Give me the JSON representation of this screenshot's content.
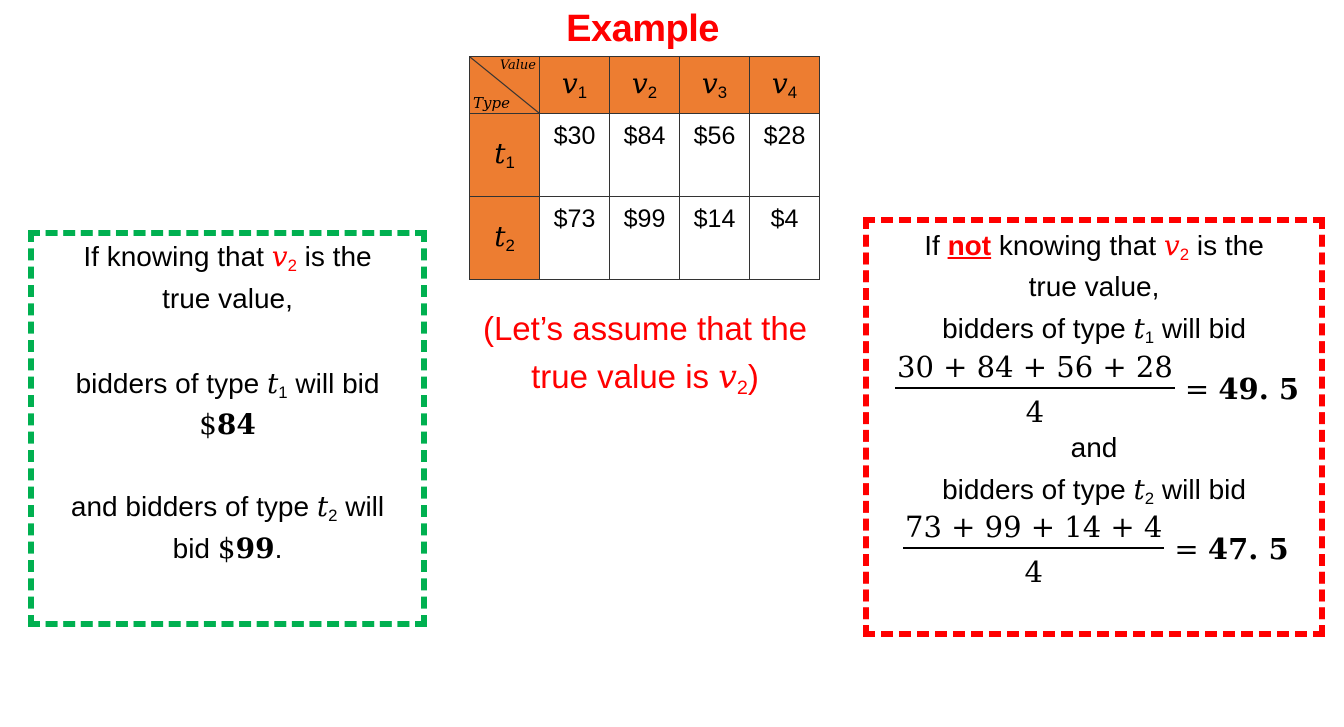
{
  "title": "Example",
  "table": {
    "corner_value": "Value",
    "corner_type": "Type",
    "columns": [
      "v",
      "v",
      "v",
      "v"
    ],
    "column_subs": [
      "1",
      "2",
      "3",
      "4"
    ],
    "rows": [
      {
        "label": "t",
        "sub": "1",
        "cells": [
          "$30",
          "$84",
          "$56",
          "$28"
        ]
      },
      {
        "label": "t",
        "sub": "2",
        "cells": [
          "$73",
          "$99",
          "$14",
          "$4"
        ]
      }
    ]
  },
  "assumption": {
    "line1": "(Let’s assume that the",
    "line2_pre": "true value is ",
    "var": "v",
    "sub": "2",
    "line2_post": ")"
  },
  "left_box": {
    "l1_pre": "If knowing that ",
    "var": "v",
    "var_sub": "2",
    "l1_post": " is the",
    "l2": "true value,",
    "l3_pre": "bidders of type ",
    "t1": "t",
    "t1_sub": "1",
    "l3_post": " will bid",
    "bid1_currency": "$",
    "bid1_value": "84",
    "l5_pre": "and bidders of type ",
    "t2": "t",
    "t2_sub": "2",
    "l5_post": " will",
    "l6_pre": "bid ",
    "bid2_currency": "$",
    "bid2_value": "99",
    "l6_post": "."
  },
  "right_box": {
    "l1_pre": "If ",
    "not": "not",
    "l1_mid": " knowing that ",
    "var": "v",
    "var_sub": "2",
    "l1_post": " is the",
    "l2": "true value,",
    "l3_pre": "bidders of type ",
    "t1": "t",
    "t1_sub": "1",
    "l3_post": " will bid",
    "frac1_num": "30 + 84 + 56 + 28",
    "frac1_den": "4",
    "frac1_eq": "= ",
    "frac1_res": "49. 5",
    "and": "and",
    "l5_pre": "bidders of type ",
    "t2": "t",
    "t2_sub": "2",
    "l5_post": " will bid",
    "frac2_num": "73 + 99 + 14 + 4",
    "frac2_den": "4",
    "frac2_eq": "= ",
    "frac2_res": "47. 5"
  }
}
